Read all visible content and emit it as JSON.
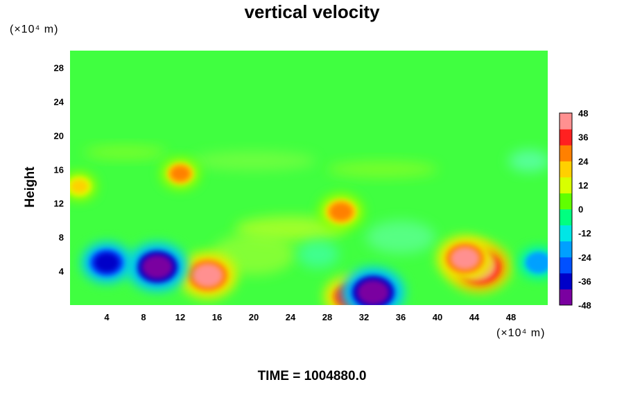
{
  "chart_data": {
    "type": "heatmap",
    "title": "vertical velocity",
    "ylabel": "Height",
    "y_unit": "(×10⁴ m)",
    "x_unit": "(×10⁴ m)",
    "footer": "TIME = 1004880.0",
    "xlim": [
      0,
      52
    ],
    "ylim": [
      0,
      30
    ],
    "x_ticks": [
      "4",
      "8",
      "12",
      "16",
      "20",
      "24",
      "28",
      "32",
      "36",
      "40",
      "44",
      "48"
    ],
    "y_ticks": [
      "4",
      "8",
      "12",
      "16",
      "20",
      "24",
      "28"
    ],
    "colorbar": {
      "range": [
        -48,
        48
      ],
      "ticks": [
        "48",
        "36",
        "24",
        "12",
        "0",
        "-12",
        "-24",
        "-36",
        "-48"
      ],
      "colors": [
        "#7a00a0",
        "#0000c8",
        "#0050ff",
        "#00a0ff",
        "#00e6e6",
        "#00ff80",
        "#60ff00",
        "#d8ff00",
        "#ffd000",
        "#ff8000",
        "#ff2020",
        "#ff9090"
      ]
    },
    "features": [
      {
        "x": 44.5,
        "y": 4.5,
        "value": 48
      },
      {
        "x": 43.0,
        "y": 5.5,
        "value": 40
      },
      {
        "x": 15.0,
        "y": 3.5,
        "value": 42
      },
      {
        "x": 29.5,
        "y": 11.0,
        "value": 30
      },
      {
        "x": 30.5,
        "y": 1.0,
        "value": 36
      },
      {
        "x": 12.0,
        "y": 15.5,
        "value": 24
      },
      {
        "x": 1.0,
        "y": 14.0,
        "value": 20
      },
      {
        "x": 9.5,
        "y": 4.5,
        "value": -44
      },
      {
        "x": 4.0,
        "y": 5.0,
        "value": -34
      },
      {
        "x": 33.0,
        "y": 1.5,
        "value": -46
      },
      {
        "x": 51.0,
        "y": 5.0,
        "value": -24
      }
    ]
  }
}
